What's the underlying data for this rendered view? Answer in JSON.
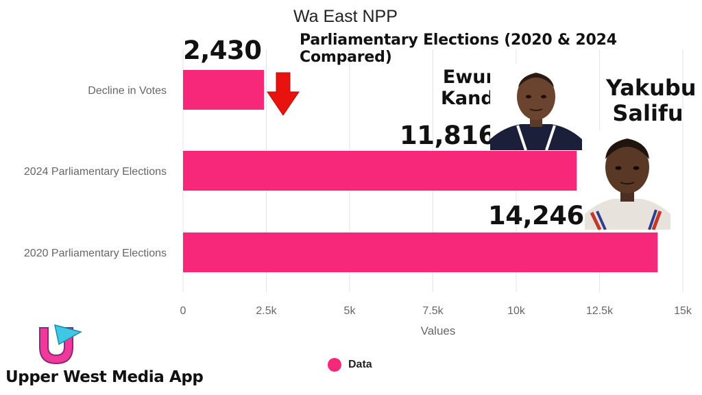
{
  "chart_data": {
    "type": "bar",
    "orientation": "horizontal",
    "title": "Wa East NPP",
    "subtitle": "Parliamentary Elections (2020 & 2024 Compared)",
    "categories": [
      "Decline in Votes",
      "2024 Parliamentary Elections",
      "2020 Parliamentary Elections"
    ],
    "values": [
      2430,
      11816,
      14246
    ],
    "value_labels": [
      "2,430",
      "11,816",
      "14,246"
    ],
    "xlabel": "Values",
    "ylabel": "",
    "xlim": [
      0,
      15000
    ],
    "x_ticks": [
      0,
      2500,
      5000,
      7500,
      10000,
      12500,
      15000
    ],
    "x_tick_labels": [
      "0",
      "2.5k",
      "5k",
      "7.5k",
      "10k",
      "12.5k",
      "15k"
    ],
    "grid": "vertical",
    "legend": {
      "position": "bottom",
      "entries": [
        "Data"
      ]
    },
    "colors": {
      "bar": "#f7277a",
      "arrow": "#e8130f"
    }
  },
  "annotations": {
    "person_2024": "Ewura\nKandia",
    "person_2020": "Yakubu\nSalifu",
    "decline_arrow_icon": "down-arrow-icon"
  },
  "branding": {
    "app_name": "Upper West Media App",
    "logo_icon": "u-play-logo-icon"
  }
}
